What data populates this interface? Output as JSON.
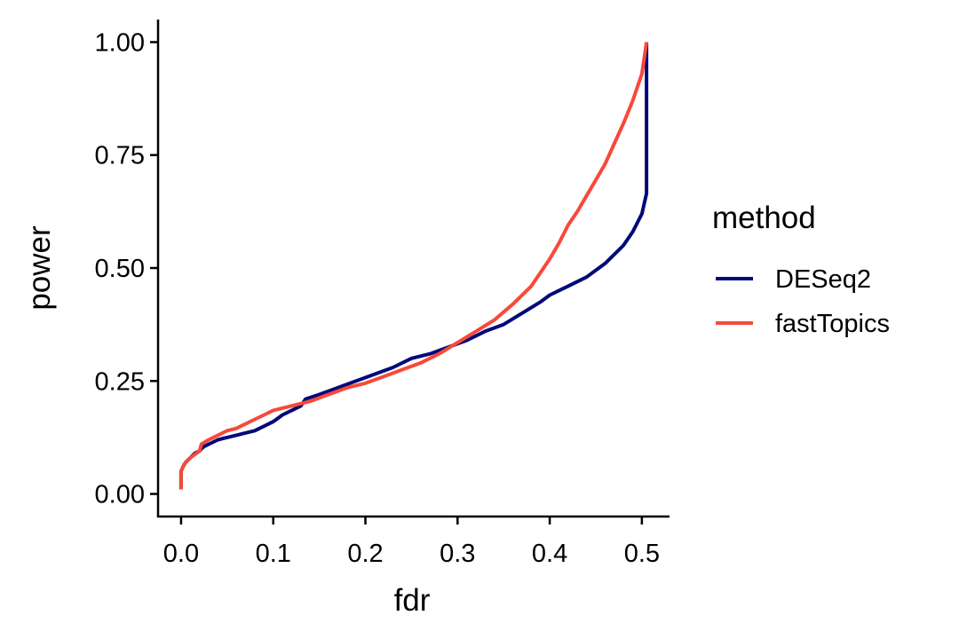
{
  "chart_data": {
    "type": "line",
    "xlabel": "fdr",
    "ylabel": "power",
    "xlim": [
      -0.025,
      0.53
    ],
    "ylim": [
      -0.05,
      1.05
    ],
    "xticks": [
      0.0,
      0.1,
      0.2,
      0.3,
      0.4,
      0.5
    ],
    "xtick_labels": [
      "0.0",
      "0.1",
      "0.2",
      "0.3",
      "0.4",
      "0.5"
    ],
    "yticks": [
      0.0,
      0.25,
      0.5,
      0.75,
      1.0
    ],
    "ytick_labels": [
      "0.00",
      "0.25",
      "0.50",
      "0.75",
      "1.00"
    ],
    "grid": false,
    "legend": {
      "title": "method",
      "position": "right"
    },
    "series": [
      {
        "name": "DESeq2",
        "color": "#000a78",
        "x": [
          0.0,
          0.0,
          0.002,
          0.005,
          0.01,
          0.015,
          0.02,
          0.022,
          0.025,
          0.03,
          0.04,
          0.05,
          0.06,
          0.07,
          0.08,
          0.085,
          0.09,
          0.1,
          0.11,
          0.12,
          0.13,
          0.135,
          0.15,
          0.17,
          0.19,
          0.21,
          0.23,
          0.25,
          0.27,
          0.29,
          0.31,
          0.33,
          0.35,
          0.37,
          0.39,
          0.4,
          0.42,
          0.44,
          0.46,
          0.48,
          0.49,
          0.5,
          0.505,
          0.505
        ],
        "y": [
          0.01,
          0.05,
          0.06,
          0.07,
          0.08,
          0.09,
          0.095,
          0.1,
          0.105,
          0.11,
          0.12,
          0.125,
          0.13,
          0.135,
          0.14,
          0.145,
          0.15,
          0.16,
          0.175,
          0.185,
          0.195,
          0.21,
          0.22,
          0.235,
          0.25,
          0.265,
          0.28,
          0.3,
          0.31,
          0.325,
          0.34,
          0.36,
          0.375,
          0.4,
          0.425,
          0.44,
          0.46,
          0.48,
          0.51,
          0.55,
          0.58,
          0.62,
          0.665,
          1.0
        ]
      },
      {
        "name": "fastTopics",
        "color": "#f7493a",
        "x": [
          0.0,
          0.0,
          0.003,
          0.01,
          0.02,
          0.022,
          0.03,
          0.04,
          0.05,
          0.06,
          0.07,
          0.08,
          0.09,
          0.1,
          0.12,
          0.14,
          0.16,
          0.18,
          0.2,
          0.22,
          0.24,
          0.26,
          0.28,
          0.3,
          0.32,
          0.34,
          0.36,
          0.38,
          0.39,
          0.4,
          0.41,
          0.42,
          0.43,
          0.44,
          0.45,
          0.46,
          0.47,
          0.48,
          0.49,
          0.5,
          0.505
        ],
        "y": [
          0.01,
          0.05,
          0.065,
          0.08,
          0.095,
          0.11,
          0.12,
          0.13,
          0.14,
          0.145,
          0.155,
          0.165,
          0.175,
          0.185,
          0.195,
          0.205,
          0.22,
          0.235,
          0.245,
          0.26,
          0.275,
          0.29,
          0.31,
          0.335,
          0.36,
          0.385,
          0.42,
          0.46,
          0.49,
          0.52,
          0.555,
          0.595,
          0.625,
          0.66,
          0.695,
          0.73,
          0.775,
          0.82,
          0.87,
          0.93,
          1.0
        ]
      }
    ]
  }
}
